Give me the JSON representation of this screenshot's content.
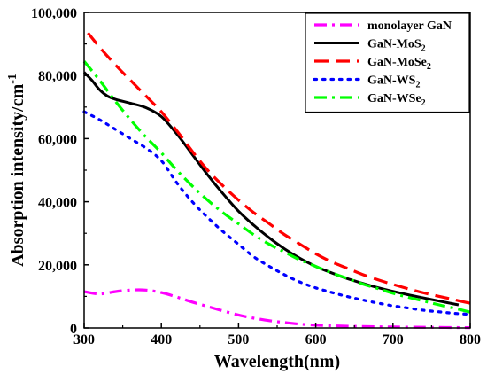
{
  "chart_data": {
    "type": "line",
    "title": "",
    "xlabel": "Wavelength(nm)",
    "ylabel": "Absorption intensity/cm",
    "ylabel_superscript": "-1",
    "xlim": [
      300,
      800
    ],
    "ylim": [
      0,
      100000
    ],
    "xticks": [
      300,
      400,
      500,
      600,
      700,
      800
    ],
    "yticks": [
      0,
      20000,
      40000,
      60000,
      80000,
      100000
    ],
    "xtick_labels": [
      "300",
      "400",
      "500",
      "600",
      "700",
      "800"
    ],
    "ytick_labels": [
      "0",
      "20,000",
      "40,000",
      "60,000",
      "80,000",
      "100,000"
    ],
    "grid": false,
    "legend_position": "top-right",
    "series": [
      {
        "name": "monolayer GaN",
        "legend_label": {
          "text": "monolayer GaN",
          "sub": "",
          "tail": ""
        },
        "color": "#ff00ff",
        "dash": "dashdot",
        "x": [
          300,
          320,
          340,
          360,
          380,
          400,
          420,
          440,
          460,
          480,
          500,
          520,
          540,
          560,
          580,
          600,
          620,
          650,
          700,
          750,
          800
        ],
        "y": [
          11500,
          10800,
          11500,
          12000,
          12000,
          11200,
          9800,
          8200,
          6800,
          5400,
          4100,
          3100,
          2300,
          1700,
          1200,
          900,
          700,
          500,
          300,
          200,
          100
        ]
      },
      {
        "name": "GaN-MoS2",
        "legend_label": {
          "text": "GaN-MoS",
          "sub": "2",
          "tail": ""
        },
        "color": "#000000",
        "dash": "solid",
        "x": [
          300,
          310,
          320,
          330,
          340,
          360,
          380,
          400,
          420,
          440,
          460,
          480,
          500,
          520,
          540,
          560,
          580,
          600,
          620,
          640,
          660,
          680,
          700,
          720,
          740,
          760,
          785
        ],
        "y": [
          81000,
          78500,
          75500,
          73500,
          72500,
          71200,
          69800,
          67000,
          61500,
          55000,
          48500,
          42500,
          37000,
          32500,
          28500,
          25000,
          22000,
          19500,
          17500,
          15700,
          14200,
          12800,
          11600,
          10500,
          9500,
          8500,
          7300
        ]
      },
      {
        "name": "GaN-MoSe2",
        "legend_label": {
          "text": "GaN-MoSe",
          "sub": "2",
          "tail": ""
        },
        "color": "#ff0000",
        "dash": "dashed",
        "x": [
          305,
          320,
          340,
          360,
          380,
          400,
          420,
          440,
          460,
          480,
          500,
          520,
          540,
          560,
          580,
          600,
          620,
          640,
          660,
          680,
          700,
          720,
          740,
          760,
          780,
          800
        ],
        "y": [
          93500,
          89000,
          83500,
          78500,
          73500,
          68500,
          62500,
          56000,
          50000,
          45000,
          40500,
          36500,
          33000,
          29500,
          26500,
          23500,
          21000,
          19000,
          17000,
          15300,
          13800,
          12400,
          11100,
          10000,
          8900,
          7800
        ]
      },
      {
        "name": "GaN-WS2",
        "legend_label": {
          "text": "GaN-WS",
          "sub": "2",
          "tail": ""
        },
        "color": "#0000ff",
        "dash": "dotted",
        "x": [
          300,
          320,
          340,
          360,
          380,
          400,
          420,
          440,
          460,
          480,
          500,
          520,
          540,
          560,
          580,
          600,
          620,
          640,
          660,
          680,
          700,
          720,
          740,
          760,
          780,
          800
        ],
        "y": [
          68500,
          66000,
          63000,
          60000,
          57000,
          53000,
          46000,
          40000,
          35000,
          30500,
          26500,
          22500,
          19500,
          16800,
          14500,
          12700,
          11300,
          10000,
          8900,
          7900,
          7000,
          6300,
          5600,
          5100,
          4600,
          4300
        ]
      },
      {
        "name": "GaN-WSe2",
        "legend_label": {
          "text": "GaN-WSe",
          "sub": "2",
          "tail": ""
        },
        "color": "#00ff00",
        "dash": "dashdot",
        "x": [
          300,
          320,
          340,
          360,
          380,
          400,
          420,
          440,
          460,
          480,
          500,
          520,
          540,
          560,
          580,
          600,
          620,
          640,
          660,
          680,
          700,
          720,
          740,
          760,
          780,
          800
        ],
        "y": [
          84500,
          78500,
          72000,
          66000,
          60500,
          55500,
          50000,
          45000,
          40500,
          36500,
          33000,
          29500,
          26500,
          24000,
          21500,
          19500,
          17500,
          15800,
          14000,
          12500,
          11000,
          9700,
          8500,
          7300,
          6200,
          5000
        ]
      }
    ]
  }
}
